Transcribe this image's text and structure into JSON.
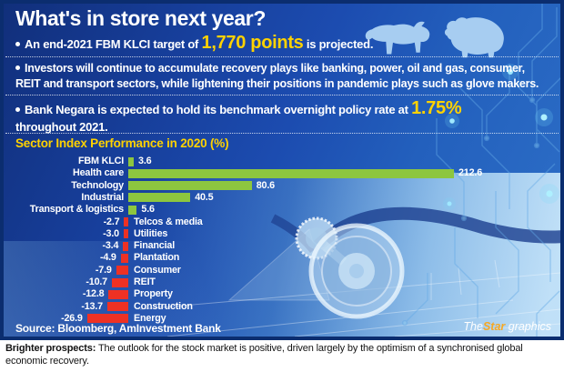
{
  "infographic": {
    "title": "What's in store next year?",
    "bullets": [
      {
        "pre": "An end-2021 FBM KLCI target of ",
        "highlight": "1,770 points",
        "post": " is projected."
      },
      {
        "pre": "Investors will continue to accumulate recovery plays like banking, power, oil and gas, consumer, REIT and transport sectors, while lightening their positions in pandemic plays such as glove makers.",
        "highlight": "",
        "post": ""
      },
      {
        "pre": "Bank Negara is expected to hold its benchmark overnight policy rate at ",
        "highlight": "1.75%",
        "post": " throughout 2021."
      }
    ],
    "source": "Source: Bloomberg, AmInvestment Bank",
    "credit": {
      "the": "The",
      "star": "Star",
      "graphics": " graphics"
    }
  },
  "chart_data": {
    "type": "bar",
    "orientation": "horizontal",
    "title": "Sector Index Performance in 2020 (%)",
    "categories": [
      "FBM KLCI",
      "Health care",
      "Technology",
      "Industrial",
      "Transport & logistics",
      "Telcos & media",
      "Utilities",
      "Financial",
      "Plantation",
      "Consumer",
      "REIT",
      "Property",
      "Construction",
      "Energy"
    ],
    "values": [
      3.6,
      212.6,
      80.6,
      40.5,
      5.6,
      -2.7,
      -3.0,
      -3.4,
      -4.9,
      -7.9,
      -10.7,
      -12.8,
      -13.7,
      -26.9
    ],
    "xlim": [
      -26.9,
      212.6
    ],
    "positive_color": "#8dc63f",
    "negative_color": "#ee3124",
    "value_labels": "shown at bar ends",
    "grid": false,
    "legend": false
  },
  "caption": {
    "lead": "Brighter prospects:",
    "text": " The outlook for the stock market is positive, driven largely by the optimism of a synchronised global economic recovery."
  },
  "icons": {
    "bull": "bull-icon",
    "bear": "bear-icon",
    "stethoscope": "stethoscope-icon",
    "circuit": "circuit-pattern"
  },
  "colors": {
    "background_blue": "#1c4cb0",
    "border_navy": "#0b2d6f",
    "accent_yellow": "#ffd200",
    "positive_green": "#8dc63f",
    "negative_red": "#ee3124",
    "silhouette_blue": "#a7cdf1",
    "star_orange": "#f7a823",
    "text_white": "#ffffff"
  }
}
